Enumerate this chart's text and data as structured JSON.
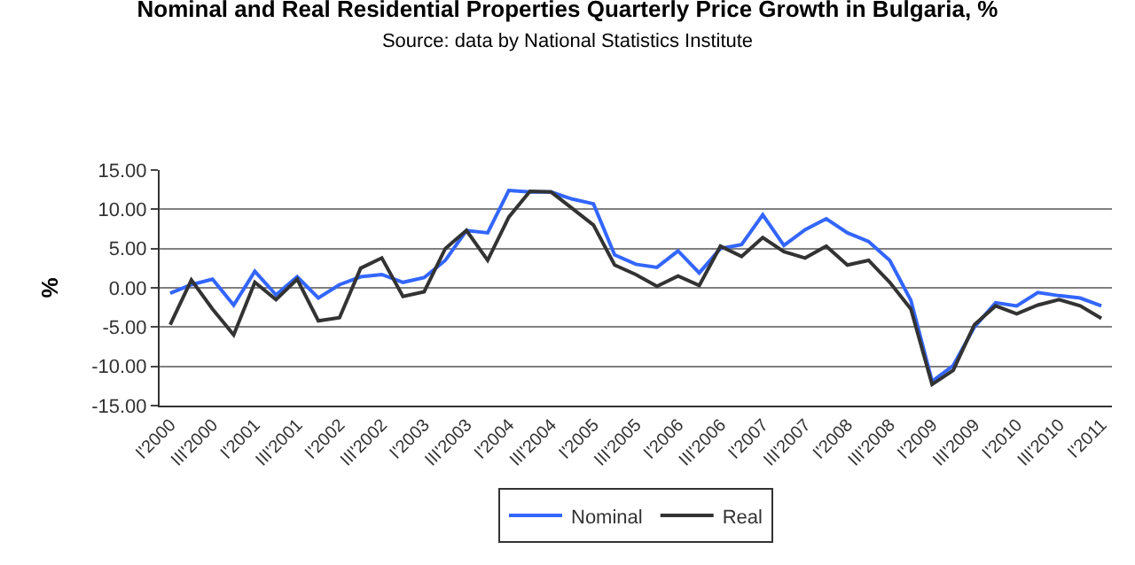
{
  "chart_data": {
    "type": "line",
    "title": "Nominal and Real Residential Properties Quarterly Price Growth in Bulgaria, %",
    "subtitle": "Source: data by National Statistics Institute",
    "ylabel": "%",
    "categories": [
      "I'2000",
      null,
      "III'2000",
      null,
      "I'2001",
      null,
      "III'2001",
      null,
      "I'2002",
      null,
      "III'2002",
      null,
      "I'2003",
      null,
      "III'2003",
      null,
      "I'2004",
      null,
      "III'2004",
      null,
      "I'2005",
      null,
      "III'2005",
      null,
      "I'2006",
      null,
      "III'2006",
      null,
      "I'2007",
      null,
      "III'2007",
      null,
      "I'2008",
      null,
      "III'2008",
      null,
      "I'2009",
      null,
      "III'2009",
      null,
      "I'2010",
      null,
      "III'2010",
      null,
      "I'2011"
    ],
    "series": [
      {
        "name": "Nominal",
        "color": "#3366ff",
        "values": [
          -0.7,
          0.4,
          1.1,
          -2.2,
          2.1,
          -0.9,
          1.4,
          -1.3,
          0.4,
          1.4,
          1.7,
          0.7,
          1.3,
          3.5,
          7.3,
          7.0,
          12.4,
          12.2,
          12.2,
          11.3,
          10.7,
          4.2,
          3.0,
          2.6,
          4.7,
          1.9,
          5.0,
          5.5,
          9.3,
          5.4,
          7.4,
          8.8,
          7.0,
          5.9,
          3.5,
          -1.6,
          -11.9,
          -9.9,
          -5.0,
          -1.9,
          -2.3,
          -0.6,
          -1.0,
          -1.3,
          -2.3
        ]
      },
      {
        "name": "Real",
        "color": "#333333",
        "values": [
          -4.7,
          1.0,
          -2.7,
          -6.0,
          0.7,
          -1.5,
          1.1,
          -4.2,
          -3.8,
          2.5,
          3.8,
          -1.1,
          -0.5,
          5.0,
          7.3,
          3.5,
          9.0,
          12.3,
          12.2,
          10.1,
          8.0,
          2.9,
          1.7,
          0.2,
          1.5,
          0.3,
          5.3,
          4.0,
          6.4,
          4.6,
          3.8,
          5.3,
          2.9,
          3.5,
          0.7,
          -2.7,
          -12.3,
          -10.5,
          -4.7,
          -2.3,
          -3.3,
          -2.2,
          -1.5,
          -2.3,
          -3.9
        ]
      }
    ],
    "ylim": [
      -15,
      15
    ],
    "yticks": [
      {
        "value": -15,
        "label": "-15.00"
      },
      {
        "value": -10,
        "label": "-10.00"
      },
      {
        "value": -5,
        "label": "-5.00"
      },
      {
        "value": 0,
        "label": "0.00"
      },
      {
        "value": 5,
        "label": "5.00"
      },
      {
        "value": 10,
        "label": "10.00"
      },
      {
        "value": 15,
        "label": "15.00"
      }
    ],
    "grid": "y",
    "legend": "bottom",
    "marker": "none",
    "line_style": "solid"
  }
}
